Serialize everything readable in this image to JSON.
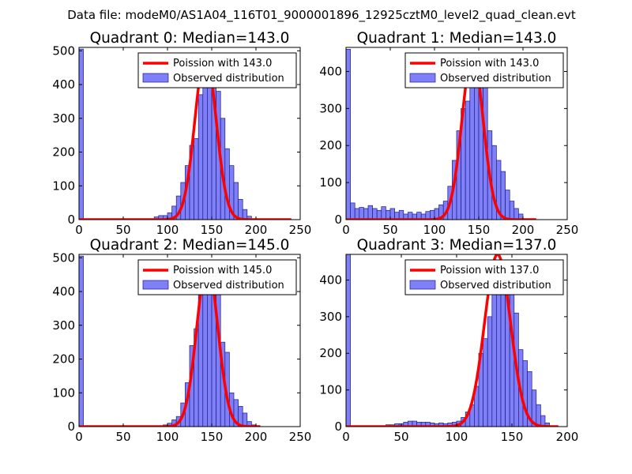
{
  "figure": {
    "suptitle": "Data file: modeM0/AS1A04_116T01_9000001896_12925cztM0_level2_quad_clean.evt"
  },
  "colors": {
    "bar_fill": "#7f7ff7",
    "bar_edge": "#1d1d8a",
    "curve": "#ff0000",
    "axes": "#000000"
  },
  "chart_data": [
    {
      "type": "bar",
      "title": "Quadrant 0: Median=143.0",
      "median": 143.0,
      "xlim": [
        0,
        250
      ],
      "ylim": [
        0,
        510
      ],
      "xticks": [
        0,
        50,
        100,
        150,
        200,
        250
      ],
      "yticks": [
        0,
        100,
        200,
        300,
        400,
        500
      ],
      "legend": {
        "location": "upper right",
        "entries": [
          "Poission with 143.0",
          "Observed distribution"
        ]
      },
      "bin_width": 5,
      "bins": [
        [
          0,
          505
        ],
        [
          85,
          8
        ],
        [
          90,
          12
        ],
        [
          95,
          12
        ],
        [
          100,
          20
        ],
        [
          105,
          40
        ],
        [
          110,
          70
        ],
        [
          115,
          110
        ],
        [
          120,
          160
        ],
        [
          125,
          220
        ],
        [
          130,
          240
        ],
        [
          135,
          370
        ],
        [
          140,
          480
        ],
        [
          145,
          490
        ],
        [
          150,
          420
        ],
        [
          155,
          380
        ],
        [
          160,
          300
        ],
        [
          165,
          210
        ],
        [
          170,
          160
        ],
        [
          175,
          110
        ],
        [
          180,
          60
        ],
        [
          185,
          30
        ],
        [
          190,
          10
        ]
      ],
      "curve": {
        "lambda": 143.0,
        "peak": 490,
        "x": [
          0,
          240
        ]
      }
    },
    {
      "type": "bar",
      "title": "Quadrant 1: Median=143.0",
      "median": 143.0,
      "xlim": [
        0,
        250
      ],
      "ylim": [
        0,
        465
      ],
      "xticks": [
        0,
        50,
        100,
        150,
        200,
        250
      ],
      "yticks": [
        0,
        100,
        200,
        300,
        400
      ],
      "legend": {
        "location": "upper right",
        "entries": [
          "Poission with 143.0",
          "Observed distribution"
        ]
      },
      "bin_width": 5,
      "bins": [
        [
          0,
          460
        ],
        [
          5,
          45
        ],
        [
          10,
          30
        ],
        [
          15,
          33
        ],
        [
          20,
          30
        ],
        [
          25,
          38
        ],
        [
          30,
          30
        ],
        [
          35,
          25
        ],
        [
          40,
          35
        ],
        [
          45,
          25
        ],
        [
          50,
          30
        ],
        [
          55,
          20
        ],
        [
          60,
          25
        ],
        [
          65,
          15
        ],
        [
          70,
          20
        ],
        [
          75,
          15
        ],
        [
          80,
          20
        ],
        [
          85,
          15
        ],
        [
          90,
          22
        ],
        [
          95,
          25
        ],
        [
          100,
          30
        ],
        [
          105,
          40
        ],
        [
          110,
          50
        ],
        [
          115,
          90
        ],
        [
          120,
          160
        ],
        [
          125,
          240
        ],
        [
          130,
          300
        ],
        [
          135,
          320
        ],
        [
          140,
          360
        ],
        [
          145,
          370
        ],
        [
          150,
          395
        ],
        [
          155,
          420
        ],
        [
          160,
          240
        ],
        [
          165,
          200
        ],
        [
          170,
          160
        ],
        [
          175,
          130
        ],
        [
          180,
          80
        ],
        [
          185,
          50
        ],
        [
          190,
          30
        ],
        [
          195,
          15
        ]
      ],
      "curve": {
        "lambda": 143.0,
        "peak": 445,
        "x": [
          0,
          215
        ]
      }
    },
    {
      "type": "bar",
      "title": "Quadrant 2: Median=145.0",
      "median": 145.0,
      "xlim": [
        0,
        250
      ],
      "ylim": [
        0,
        510
      ],
      "xticks": [
        0,
        50,
        100,
        150,
        200,
        250
      ],
      "yticks": [
        0,
        100,
        200,
        300,
        400,
        500
      ],
      "legend": {
        "location": "upper right",
        "entries": [
          "Poission with 145.0",
          "Observed distribution"
        ]
      },
      "bin_width": 5,
      "bins": [
        [
          0,
          505
        ],
        [
          95,
          5
        ],
        [
          100,
          10
        ],
        [
          105,
          20
        ],
        [
          110,
          30
        ],
        [
          115,
          70
        ],
        [
          120,
          130
        ],
        [
          125,
          240
        ],
        [
          130,
          290
        ],
        [
          135,
          450
        ],
        [
          140,
          420
        ],
        [
          145,
          470
        ],
        [
          150,
          440
        ],
        [
          155,
          420
        ],
        [
          160,
          250
        ],
        [
          165,
          220
        ],
        [
          170,
          100
        ],
        [
          175,
          80
        ],
        [
          180,
          60
        ],
        [
          185,
          40
        ],
        [
          190,
          15
        ],
        [
          195,
          5
        ]
      ],
      "curve": {
        "lambda": 145.0,
        "peak": 480,
        "x": [
          0,
          205
        ]
      }
    },
    {
      "type": "bar",
      "title": "Quadrant 3: Median=137.0",
      "median": 137.0,
      "xlim": [
        0,
        200
      ],
      "ylim": [
        0,
        470
      ],
      "xticks": [
        0,
        50,
        100,
        150,
        200
      ],
      "yticks": [
        0,
        100,
        200,
        300,
        400
      ],
      "legend": {
        "location": "upper right",
        "entries": [
          "Poission with 137.0",
          "Observed distribution"
        ]
      },
      "bin_width": 4,
      "bins": [
        [
          0,
          470
        ],
        [
          36,
          5
        ],
        [
          40,
          5
        ],
        [
          44,
          8
        ],
        [
          48,
          8
        ],
        [
          52,
          12
        ],
        [
          56,
          15
        ],
        [
          60,
          15
        ],
        [
          64,
          12
        ],
        [
          68,
          12
        ],
        [
          72,
          12
        ],
        [
          76,
          10
        ],
        [
          80,
          8
        ],
        [
          84,
          10
        ],
        [
          88,
          8
        ],
        [
          92,
          10
        ],
        [
          96,
          12
        ],
        [
          100,
          15
        ],
        [
          104,
          25
        ],
        [
          108,
          40
        ],
        [
          112,
          60
        ],
        [
          116,
          110
        ],
        [
          120,
          200
        ],
        [
          124,
          240
        ],
        [
          128,
          300
        ],
        [
          132,
          410
        ],
        [
          136,
          450
        ],
        [
          140,
          450
        ],
        [
          144,
          410
        ],
        [
          148,
          370
        ],
        [
          152,
          310
        ],
        [
          156,
          210
        ],
        [
          160,
          180
        ],
        [
          164,
          150
        ],
        [
          168,
          100
        ],
        [
          172,
          60
        ],
        [
          176,
          30
        ],
        [
          180,
          10
        ]
      ],
      "curve": {
        "lambda": 137.0,
        "peak": 470,
        "x": [
          0,
          192
        ]
      }
    }
  ]
}
